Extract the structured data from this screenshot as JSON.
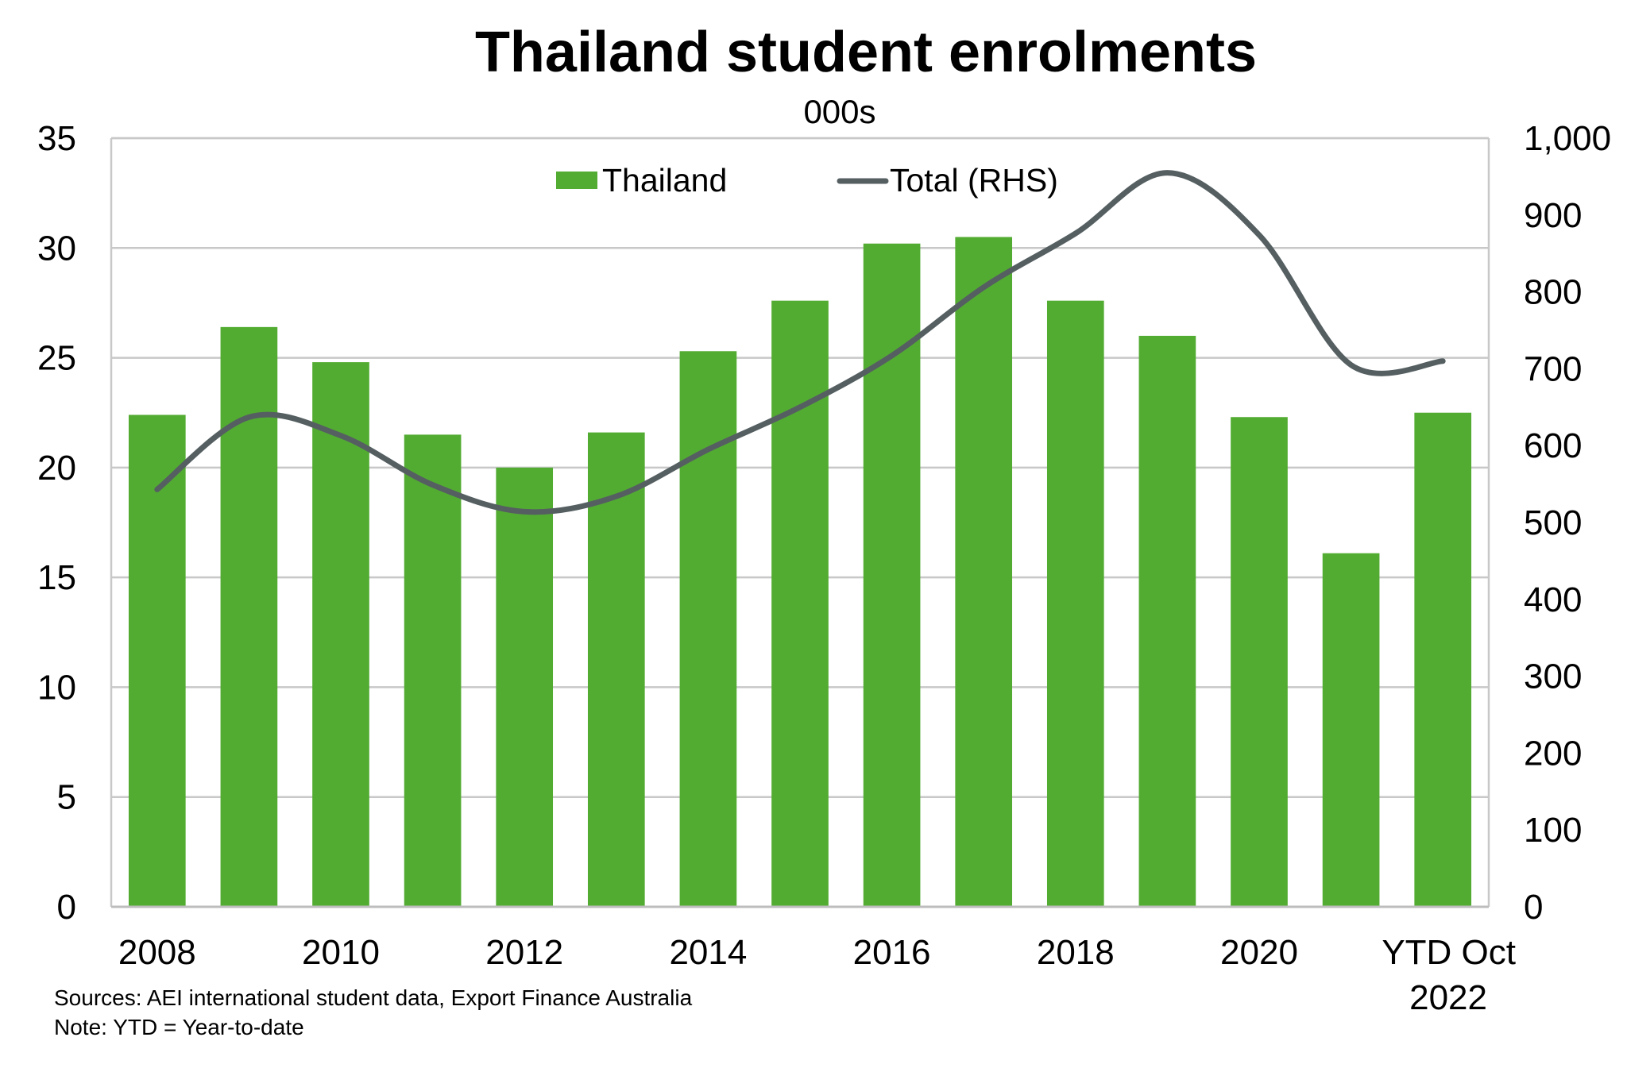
{
  "chart_data": {
    "type": "bar",
    "title": "Thailand student enrolments",
    "subtitle": "000s",
    "categories": [
      "2008",
      "2009",
      "2010",
      "2011",
      "2012",
      "2013",
      "2014",
      "2015",
      "2016",
      "2017",
      "2018",
      "2019",
      "2020",
      "2021",
      "YTD Oct 2022"
    ],
    "x_tick_labels": [
      {
        "category_index": 0,
        "lines": [
          "2008"
        ]
      },
      {
        "category_index": 2,
        "lines": [
          "2010"
        ]
      },
      {
        "category_index": 4,
        "lines": [
          "2012"
        ]
      },
      {
        "category_index": 6,
        "lines": [
          "2014"
        ]
      },
      {
        "category_index": 8,
        "lines": [
          "2016"
        ]
      },
      {
        "category_index": 10,
        "lines": [
          "2018"
        ]
      },
      {
        "category_index": 12,
        "lines": [
          "2020"
        ]
      },
      {
        "category_index": 14,
        "lines": [
          "YTD Oct",
          "2022"
        ]
      }
    ],
    "series": [
      {
        "name": "Thailand",
        "type": "bar",
        "axis": "left",
        "color": "#53AC32",
        "values": [
          22.4,
          26.4,
          24.8,
          21.5,
          20.0,
          21.6,
          25.3,
          27.6,
          30.2,
          30.5,
          27.6,
          26.0,
          22.3,
          16.1,
          22.5
        ]
      },
      {
        "name": "Total (RHS)",
        "type": "line",
        "axis": "right",
        "color": "#555F61",
        "values": [
          543,
          637,
          613,
          549,
          514,
          534,
          595,
          650,
          717,
          806,
          876,
          955,
          874,
          705,
          710
        ]
      }
    ],
    "y_left": {
      "min": 0,
      "max": 35,
      "ticks": [
        "0",
        "5",
        "10",
        "15",
        "20",
        "25",
        "30",
        "35"
      ]
    },
    "y_right": {
      "min": 0,
      "max": 1000,
      "ticks": [
        "0",
        "100",
        "200",
        "300",
        "400",
        "500",
        "600",
        "700",
        "800",
        "900",
        "1,000"
      ]
    },
    "grid": true,
    "legend_position": "top-center"
  },
  "footer": {
    "sources": "Sources: AEI international student data, Export Finance Australia",
    "note": "Note: YTD = Year-to-date"
  }
}
